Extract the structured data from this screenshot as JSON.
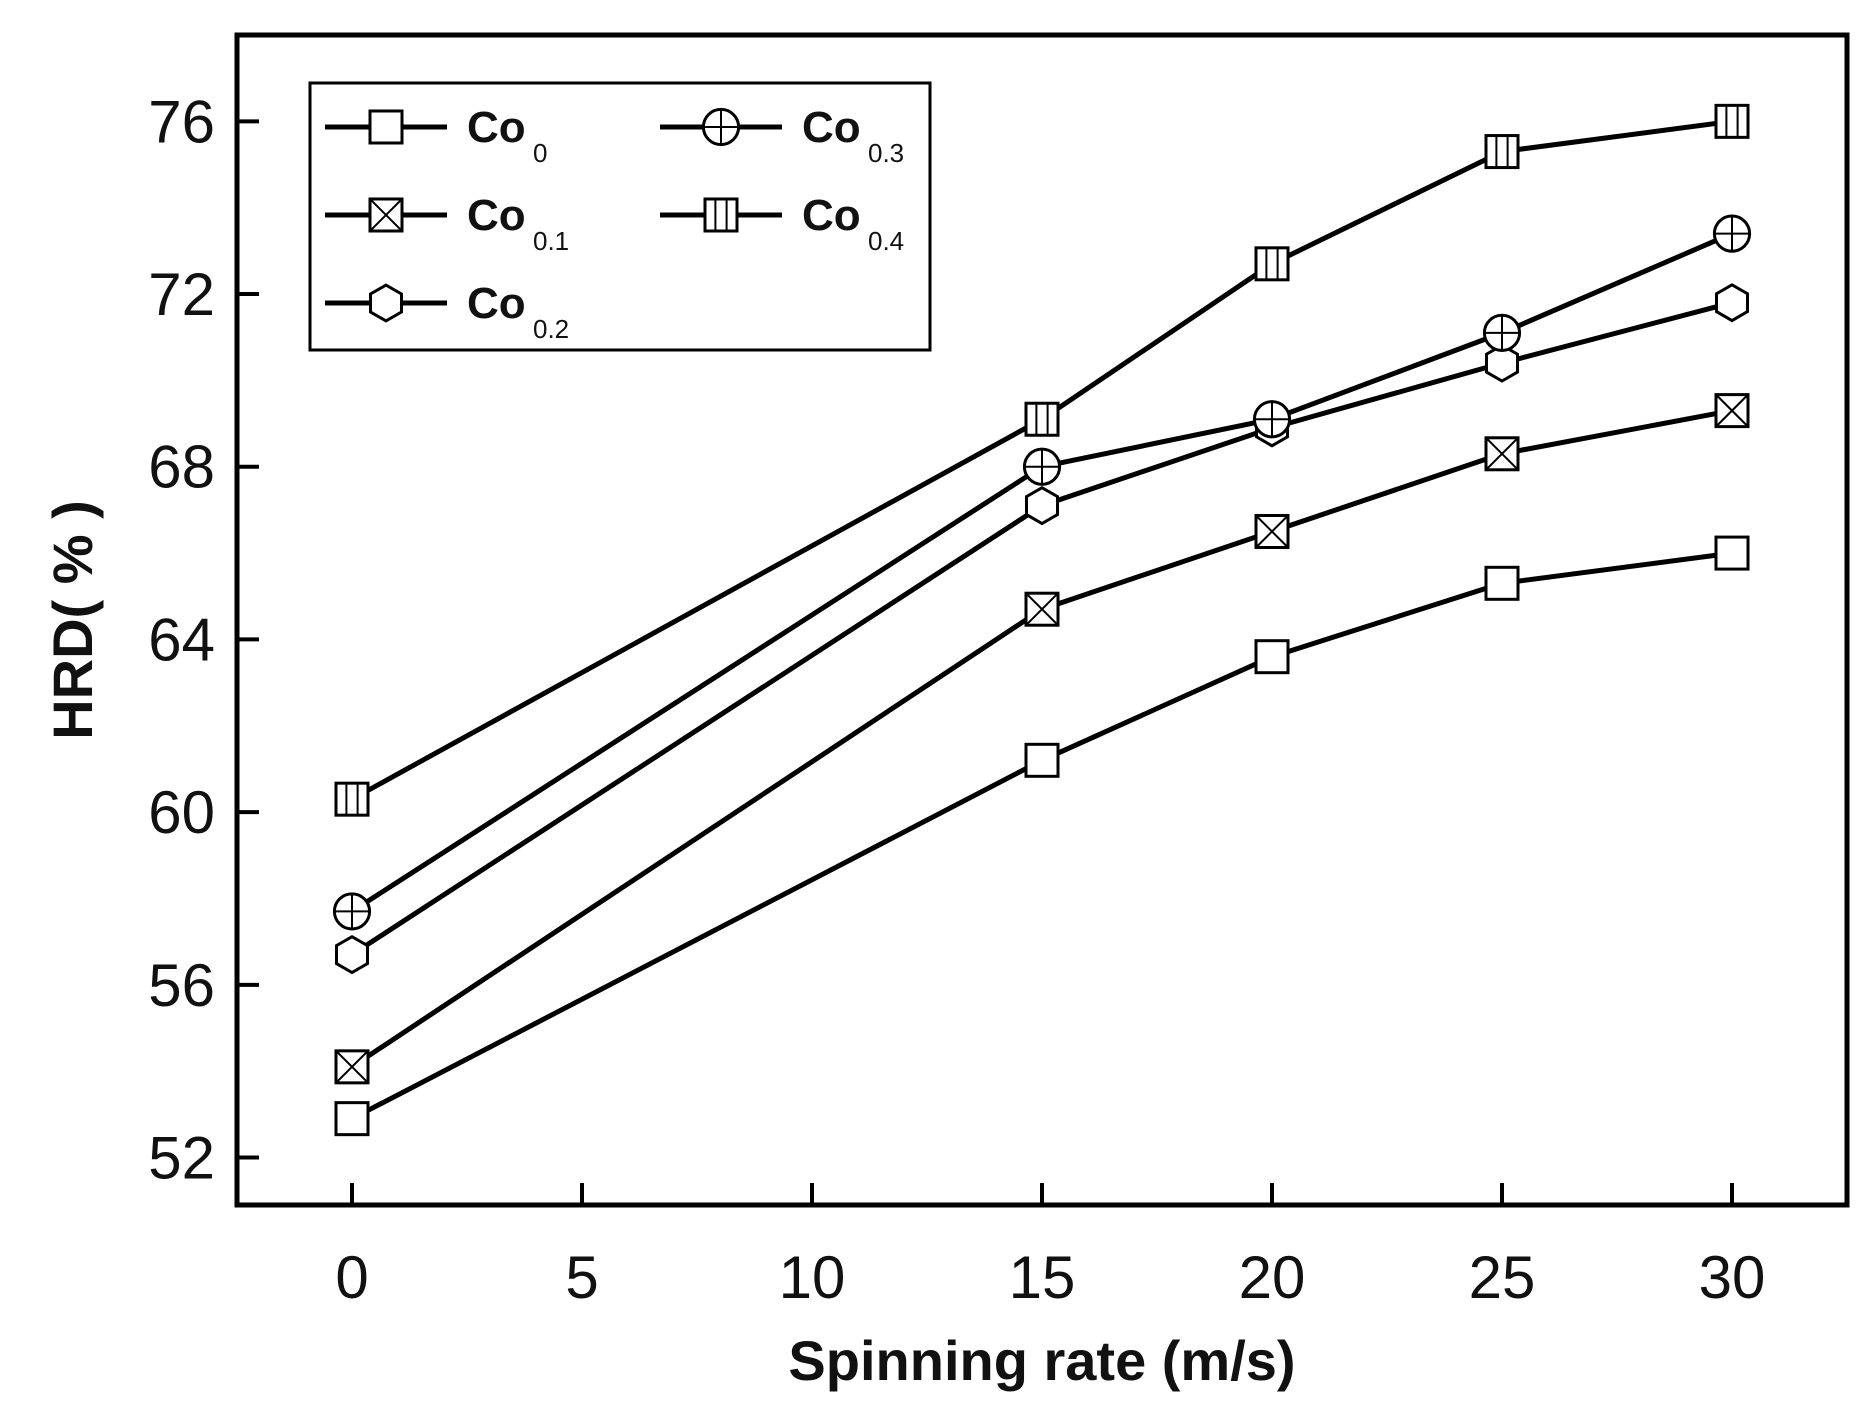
{
  "chart_data": {
    "type": "line",
    "title": "",
    "xlabel": "Spinning rate (m/s)",
    "ylabel": "HRD( % )",
    "xlim": [
      -2.5,
      32.5
    ],
    "ylim": [
      50.9,
      78
    ],
    "xticks": [
      "0",
      "5",
      "10",
      "15",
      "20",
      "25",
      "30"
    ],
    "yticks": [
      "52",
      "56",
      "60",
      "64",
      "68",
      "72",
      "76"
    ],
    "x": [
      0,
      15,
      20,
      25,
      30
    ],
    "legend_position": "top-left",
    "series": [
      {
        "name": "Co",
        "sub": "0",
        "marker": "square",
        "values": [
          52.9,
          61.2,
          63.6,
          65.3,
          66.0
        ]
      },
      {
        "name": "Co",
        "sub": "0.1",
        "marker": "square-x",
        "values": [
          54.1,
          64.7,
          66.5,
          68.3,
          69.3
        ]
      },
      {
        "name": "Co",
        "sub": "0.2",
        "marker": "hexagon",
        "values": [
          56.7,
          67.1,
          68.9,
          70.4,
          71.8
        ]
      },
      {
        "name": "Co",
        "sub": "0.3",
        "marker": "circle-plus",
        "values": [
          57.7,
          68.0,
          69.1,
          71.1,
          73.4
        ]
      },
      {
        "name": "Co",
        "sub": "0.4",
        "marker": "square-bar",
        "values": [
          60.3,
          69.1,
          72.7,
          75.3,
          76.0
        ]
      }
    ]
  }
}
